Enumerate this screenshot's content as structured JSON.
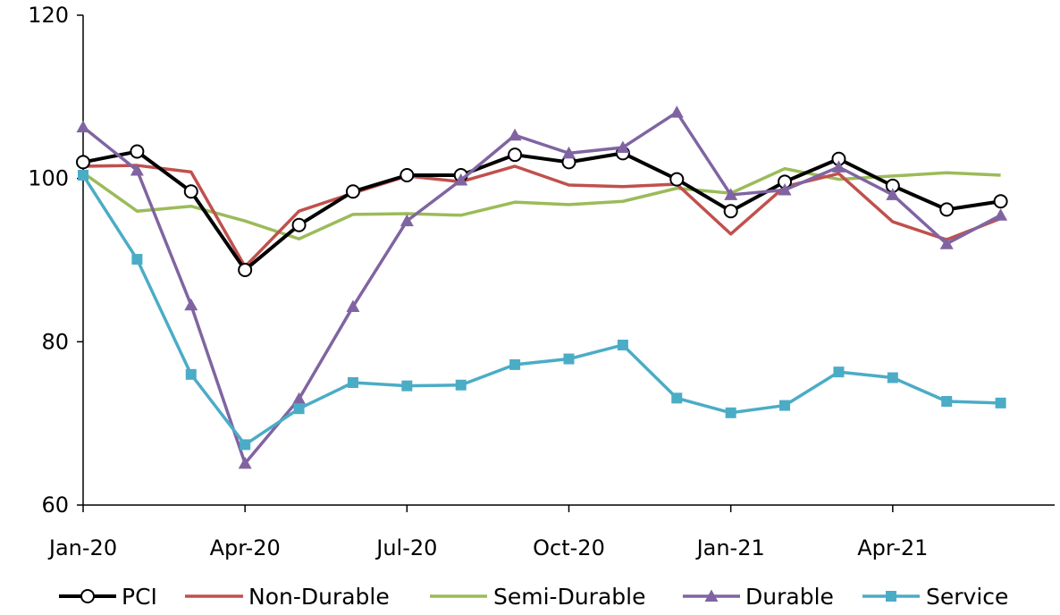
{
  "chart_data": {
    "type": "line",
    "x": [
      "Jan-20",
      "Feb-20",
      "Mar-20",
      "Apr-20",
      "May-20",
      "Jun-20",
      "Jul-20",
      "Aug-20",
      "Sep-20",
      "Oct-20",
      "Nov-20",
      "Dec-20",
      "Jan-21",
      "Feb-21",
      "Mar-21",
      "Apr-21",
      "May-21",
      "Jun-21"
    ],
    "x_tick_labels": [
      "Jan-20",
      "Apr-20",
      "Jul-20",
      "Oct-20",
      "Jan-21",
      "Apr-21"
    ],
    "y_ticks": [
      60,
      80,
      100,
      120
    ],
    "ylim": [
      60,
      120
    ],
    "title": "",
    "xlabel": "",
    "ylabel": "",
    "grid": false,
    "legend_position": "bottom",
    "series": [
      {
        "name": "PCI",
        "color": "#000000",
        "marker": "circle-open",
        "values": [
          102.0,
          103.3,
          98.4,
          88.8,
          94.3,
          98.4,
          100.4,
          100.4,
          102.9,
          102.0,
          103.1,
          99.9,
          96.0,
          99.6,
          102.4,
          99.1,
          96.2,
          97.2
        ]
      },
      {
        "name": "Non-Durable",
        "color": "#c0504d",
        "marker": "none",
        "values": [
          101.5,
          101.6,
          100.8,
          89.2,
          96.0,
          98.2,
          100.3,
          99.6,
          101.5,
          99.2,
          99.0,
          99.3,
          93.2,
          99.0,
          100.6,
          94.7,
          92.5,
          95.1
        ]
      },
      {
        "name": "Semi-Durable",
        "color": "#9bbb59",
        "marker": "none",
        "values": [
          100.7,
          96.0,
          96.6,
          94.8,
          92.6,
          95.6,
          95.7,
          95.5,
          97.1,
          96.8,
          97.2,
          98.8,
          98.2,
          101.2,
          99.9,
          100.3,
          100.7,
          100.4
        ]
      },
      {
        "name": "Durable",
        "color": "#8064a2",
        "marker": "triangle",
        "values": [
          106.3,
          101.0,
          84.5,
          65.1,
          73.0,
          84.3,
          94.8,
          99.8,
          105.3,
          103.1,
          103.8,
          108.1,
          98.0,
          98.6,
          101.4,
          98.0,
          92.0,
          95.5
        ]
      },
      {
        "name": "Service",
        "color": "#4bacc6",
        "marker": "square",
        "values": [
          100.4,
          90.1,
          76.0,
          67.4,
          71.8,
          75.0,
          74.6,
          74.7,
          77.2,
          77.9,
          79.6,
          73.1,
          71.3,
          72.2,
          76.3,
          75.6,
          72.7,
          72.5
        ]
      }
    ]
  }
}
